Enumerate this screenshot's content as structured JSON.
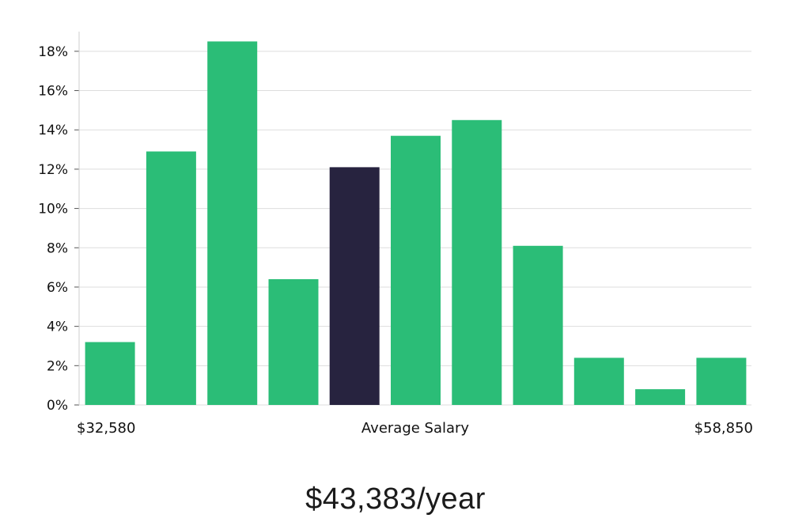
{
  "chart_data": {
    "type": "bar",
    "title": "",
    "xlabel": "Average Salary",
    "ylabel": "",
    "x_range_labels": {
      "min": "$32,580",
      "max": "$58,850"
    },
    "ylim": [
      0,
      19
    ],
    "yticks": [
      0,
      2,
      4,
      6,
      8,
      10,
      12,
      14,
      16,
      18
    ],
    "ytick_labels": [
      "0%",
      "2%",
      "4%",
      "6%",
      "8%",
      "10%",
      "12%",
      "14%",
      "16%",
      "18%"
    ],
    "values": [
      3.2,
      12.9,
      18.5,
      6.4,
      12.1,
      13.7,
      14.5,
      8.1,
      2.4,
      0.8,
      2.4
    ],
    "highlight_index": 4,
    "colors": {
      "bar": "#2bbd77",
      "highlight": "#27233f",
      "grid": "#dddddd",
      "axis": "#cccccc"
    }
  },
  "summary": {
    "average_salary_text": "$43,383/year"
  }
}
